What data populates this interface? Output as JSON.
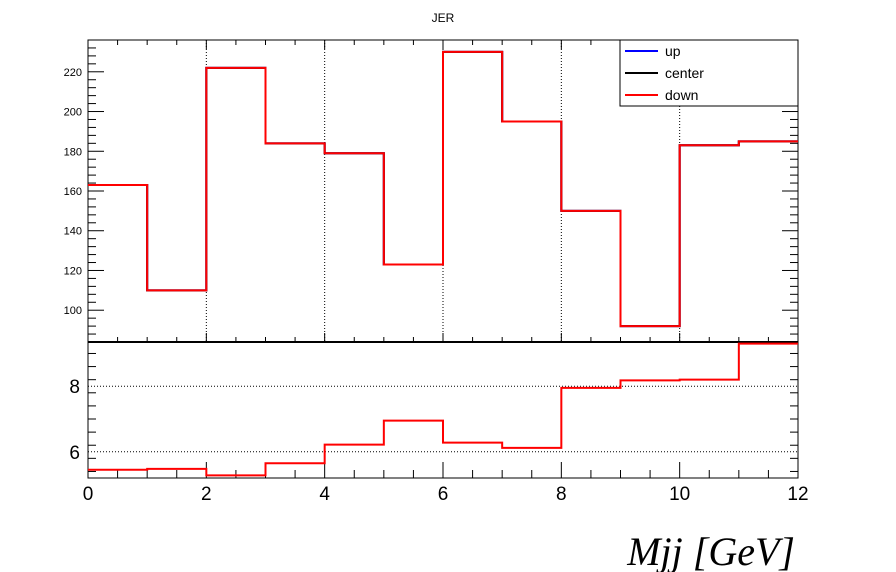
{
  "chart_data": [
    {
      "type": "line",
      "step": true,
      "title": "JER",
      "xlabel": "",
      "ylabel": "",
      "xlim": [
        0,
        12
      ],
      "ylim": [
        84,
        236
      ],
      "yticks": [
        100,
        120,
        140,
        160,
        180,
        200,
        220
      ],
      "xgrid": [
        2,
        4,
        6,
        8,
        10
      ],
      "grid": "vertical dotted",
      "legend_position": "top-right",
      "bin_edges": [
        0,
        1,
        2,
        3,
        4,
        5,
        6,
        7,
        8,
        9,
        10,
        11,
        12
      ],
      "series": [
        {
          "name": "up",
          "color": "#0000ff",
          "values": [
            163,
            110,
            222,
            184,
            179,
            123,
            230,
            195,
            150,
            92,
            183,
            185
          ]
        },
        {
          "name": "center",
          "color": "#000000",
          "values": [
            163,
            110,
            222,
            184,
            179,
            123,
            230,
            195,
            150,
            92,
            183,
            185
          ]
        },
        {
          "name": "down",
          "color": "#ff0000",
          "values": [
            163,
            110,
            222,
            184,
            179,
            123,
            230,
            195,
            150,
            92,
            183,
            185
          ]
        }
      ]
    },
    {
      "type": "line",
      "step": true,
      "title": "",
      "xlabel": "Mjj [GeV]",
      "ylabel": "",
      "xlim": [
        0,
        12
      ],
      "ylim": [
        5.2,
        9.35
      ],
      "xticks": [
        0,
        2,
        4,
        6,
        8,
        10,
        12
      ],
      "yticks": [
        6,
        8
      ],
      "ygrid": [
        6,
        8
      ],
      "grid": "horizontal dotted",
      "bin_edges": [
        0,
        1,
        2,
        3,
        4,
        5,
        6,
        7,
        8,
        9,
        10,
        11,
        12
      ],
      "series": [
        {
          "name": "",
          "color": "#ff0000",
          "values": [
            5.45,
            5.48,
            5.28,
            5.65,
            6.22,
            6.95,
            6.28,
            6.12,
            7.95,
            8.18,
            8.2,
            9.3
          ]
        }
      ]
    }
  ]
}
